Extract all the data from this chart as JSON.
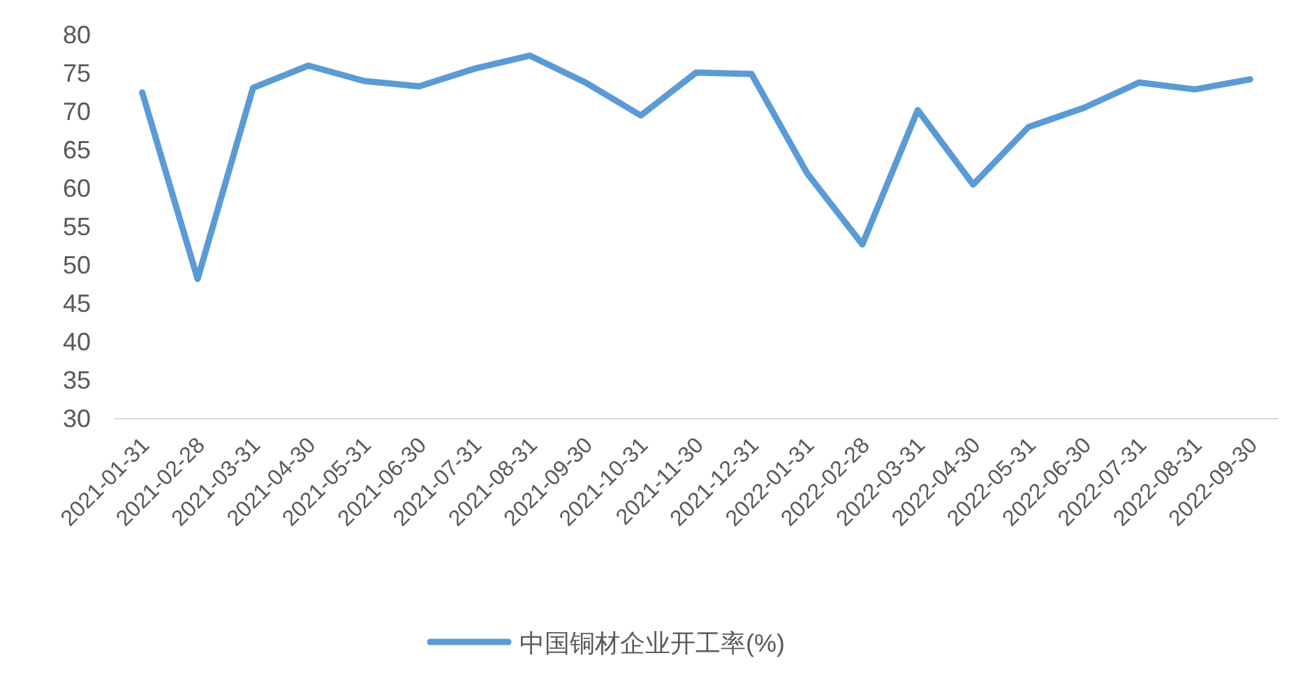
{
  "chart_data": {
    "type": "line",
    "categories": [
      "2021-01-31",
      "2021-02-28",
      "2021-03-31",
      "2021-04-30",
      "2021-05-31",
      "2021-06-30",
      "2021-07-31",
      "2021-08-31",
      "2021-09-30",
      "2021-10-31",
      "2021-11-30",
      "2021-12-31",
      "2022-01-31",
      "2022-02-28",
      "2022-03-31",
      "2022-04-30",
      "2022-05-31",
      "2022-06-30",
      "2022-07-31",
      "2022-08-31",
      "2022-09-30"
    ],
    "series": [
      {
        "name": "中国铜材企业开工率(%)",
        "color": "#5b9bd5",
        "values": [
          72.5,
          48.2,
          73.1,
          76,
          74,
          73.3,
          75.6,
          77.3,
          73.8,
          69.5,
          75.1,
          74.9,
          62,
          52.7,
          70.2,
          60.5,
          68,
          70.5,
          73.8,
          72.9,
          74.2
        ]
      }
    ],
    "ylim": [
      30,
      80
    ],
    "yticks": [
      30,
      35,
      40,
      45,
      50,
      55,
      60,
      65,
      70,
      75,
      80
    ],
    "legend": "bottom"
  }
}
